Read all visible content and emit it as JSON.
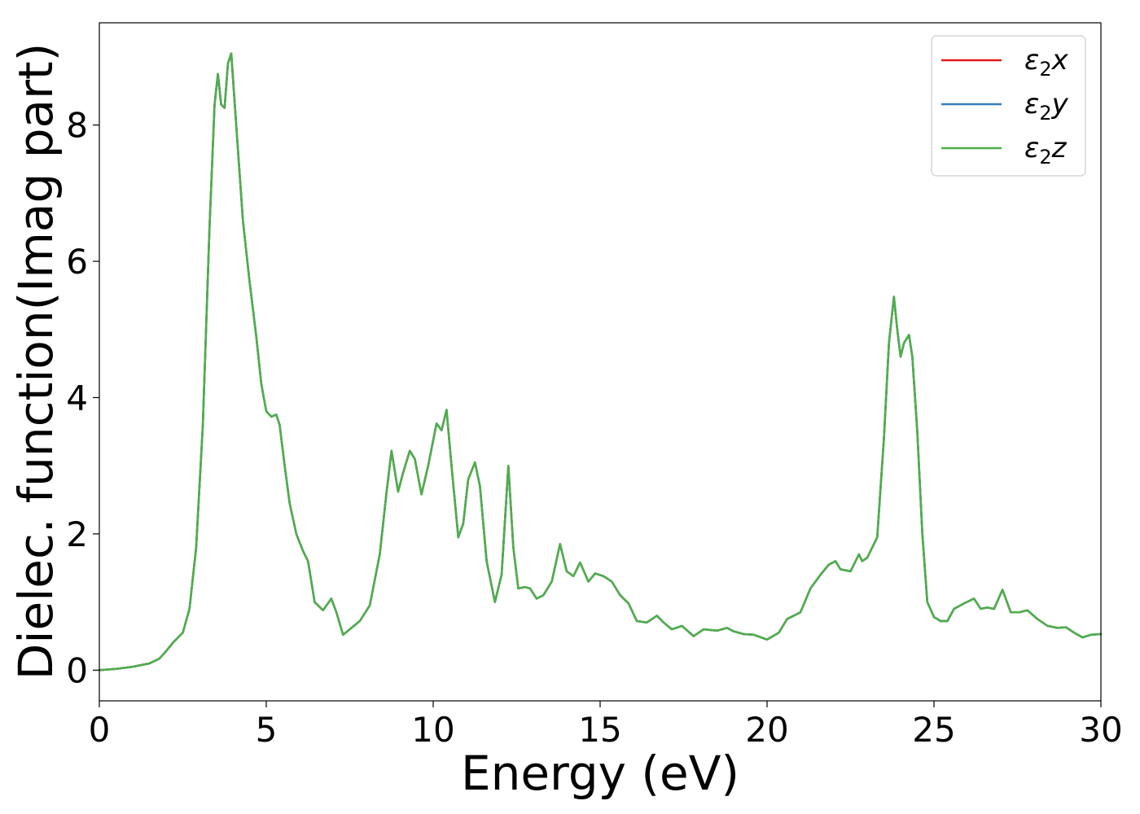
{
  "chart_data": {
    "type": "line",
    "xlabel": "Energy (eV)",
    "ylabel": "Dielec. function(Imag part)",
    "xlim": [
      0,
      30
    ],
    "ylim": [
      -0.45,
      9.5
    ],
    "xticks": [
      0,
      5,
      10,
      15,
      20,
      25,
      30
    ],
    "yticks": [
      0,
      2,
      4,
      6,
      8
    ],
    "grid": false,
    "legend_position": "top-right",
    "series": [
      {
        "name": "ε₂x",
        "legend": {
          "base": "ε",
          "sub": "2",
          "suffix": "x"
        },
        "color": "#e41a1c",
        "x": [
          0,
          0.5,
          1.0,
          1.5,
          1.8,
          2.0,
          2.2,
          2.5,
          2.7,
          2.9,
          3.1,
          3.3,
          3.45,
          3.55,
          3.65,
          3.75,
          3.85,
          3.95,
          4.1,
          4.3,
          4.5,
          4.7,
          4.85,
          5.0,
          5.15,
          5.3,
          5.4,
          5.55,
          5.7,
          5.9,
          6.1,
          6.25,
          6.45,
          6.7,
          6.95,
          7.1,
          7.3,
          7.5,
          7.8,
          8.1,
          8.4,
          8.6,
          8.75,
          8.95,
          9.1,
          9.3,
          9.45,
          9.65,
          9.85,
          10.1,
          10.25,
          10.4,
          10.55,
          10.75,
          10.9,
          11.05,
          11.25,
          11.4,
          11.6,
          11.85,
          12.05,
          12.25,
          12.4,
          12.55,
          12.75,
          12.9,
          13.1,
          13.3,
          13.55,
          13.8,
          14.0,
          14.2,
          14.4,
          14.65,
          14.85,
          15.1,
          15.35,
          15.6,
          15.85,
          16.1,
          16.4,
          16.7,
          16.9,
          17.15,
          17.45,
          17.8,
          18.1,
          18.5,
          18.8,
          19.0,
          19.3,
          19.6,
          20.0,
          20.35,
          20.6,
          21.0,
          21.3,
          21.6,
          21.85,
          22.05,
          22.2,
          22.5,
          22.75,
          22.85,
          23.0,
          23.3,
          23.5,
          23.65,
          23.8,
          23.9,
          24.0,
          24.1,
          24.25,
          24.35,
          24.5,
          24.65,
          24.8,
          25.0,
          25.2,
          25.4,
          25.6,
          25.9,
          26.2,
          26.4,
          26.6,
          26.8,
          27.05,
          27.3,
          27.55,
          27.8,
          28.1,
          28.4,
          28.7,
          28.95,
          29.2,
          29.45,
          29.7,
          30.0
        ],
        "values": [
          0.0,
          0.02,
          0.05,
          0.1,
          0.17,
          0.28,
          0.4,
          0.55,
          0.9,
          1.8,
          3.6,
          6.5,
          8.3,
          8.75,
          8.3,
          8.25,
          8.9,
          9.05,
          8.0,
          6.6,
          5.7,
          4.9,
          4.2,
          3.8,
          3.72,
          3.75,
          3.6,
          3.0,
          2.45,
          2.0,
          1.75,
          1.6,
          1.0,
          0.88,
          1.05,
          0.85,
          0.52,
          0.6,
          0.72,
          0.95,
          1.7,
          2.6,
          3.22,
          2.62,
          2.9,
          3.22,
          3.1,
          2.58,
          3.0,
          3.62,
          3.52,
          3.82,
          3.0,
          1.95,
          2.15,
          2.8,
          3.05,
          2.7,
          1.6,
          1.0,
          1.4,
          3.0,
          1.8,
          1.2,
          1.22,
          1.2,
          1.05,
          1.1,
          1.3,
          1.85,
          1.45,
          1.38,
          1.58,
          1.3,
          1.42,
          1.38,
          1.3,
          1.1,
          0.98,
          0.72,
          0.7,
          0.8,
          0.7,
          0.6,
          0.65,
          0.5,
          0.6,
          0.58,
          0.62,
          0.57,
          0.53,
          0.52,
          0.45,
          0.55,
          0.75,
          0.85,
          1.2,
          1.4,
          1.55,
          1.6,
          1.48,
          1.45,
          1.7,
          1.6,
          1.65,
          1.95,
          3.4,
          4.8,
          5.48,
          5.0,
          4.6,
          4.8,
          4.92,
          4.6,
          3.5,
          2.0,
          1.0,
          0.78,
          0.72,
          0.72,
          0.9,
          0.98,
          1.05,
          0.9,
          0.92,
          0.9,
          1.18,
          0.85,
          0.85,
          0.88,
          0.75,
          0.65,
          0.62,
          0.63,
          0.55,
          0.48,
          0.52,
          0.53
        ]
      },
      {
        "name": "ε₂y",
        "legend": {
          "base": "ε",
          "sub": "2",
          "suffix": "y"
        },
        "color": "#377eb8",
        "same_as": 0
      },
      {
        "name": "ε₂z",
        "legend": {
          "base": "ε",
          "sub": "2",
          "suffix": "z"
        },
        "color": "#4daf4a",
        "same_as": 0
      }
    ]
  }
}
